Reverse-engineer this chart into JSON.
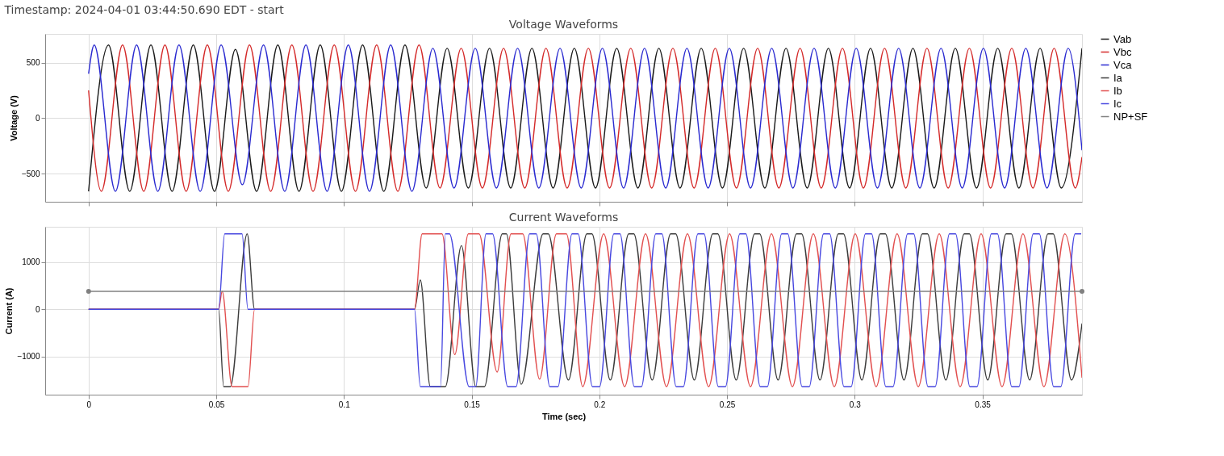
{
  "chart_data": [
    {
      "type": "line",
      "title": "Voltage Waveforms",
      "annotations": [
        "Timestamp: 2024-04-01 03:44:50.690 EDT - start"
      ],
      "ylabel": "Voltage (V)",
      "xlim": [
        -0.017,
        0.389
      ],
      "xticks": [
        0,
        0.05,
        0.1,
        0.15,
        0.2,
        0.25,
        0.3,
        0.35
      ],
      "ylim": [
        -754,
        760
      ],
      "yticks": [
        -500,
        0,
        500
      ],
      "grid": true,
      "legend": "right",
      "tick_labels": "y",
      "series": [
        {
          "name": "Vab",
          "color": "#1a1a1a",
          "x": [
            0,
            0.0078,
            0.0161,
            0.0244,
            0.0327,
            0.041,
            0.0493,
            0.0575,
            0.0658,
            0.0741,
            0.0824,
            0.0907,
            0.099,
            0.1073,
            0.1156,
            0.1239,
            0.1322,
            0.1404,
            0.1487,
            0.157,
            0.1653,
            0.1736,
            0.1819,
            0.1902,
            0.1985,
            0.2068,
            0.2151,
            0.2233,
            0.2316,
            0.2399,
            0.2482,
            0.2565,
            0.2648,
            0.2731,
            0.2814,
            0.2897,
            0.298,
            0.3062,
            0.3145,
            0.3228,
            0.3311,
            0.3394,
            0.3477,
            0.356,
            0.3643,
            0.3726,
            0.3809,
            0.389
          ],
          "values": [
            -660,
            660,
            -660,
            660,
            -660,
            660,
            -660,
            620,
            -660,
            660,
            -660,
            660,
            -660,
            660,
            -660,
            660,
            -630,
            630,
            -630,
            630,
            -630,
            630,
            -630,
            630,
            -630,
            630,
            -630,
            630,
            -630,
            630,
            -630,
            630,
            -630,
            630,
            -630,
            630,
            -630,
            630,
            -630,
            630,
            -630,
            630,
            -630,
            630,
            -630,
            630,
            -630,
            630
          ]
        },
        {
          "name": "Vbc",
          "color": "#d42a2a",
          "x": [
            0,
            0.005,
            0.0133,
            0.0216,
            0.0299,
            0.0382,
            0.0465,
            0.0547,
            0.063,
            0.0713,
            0.0796,
            0.0879,
            0.0962,
            0.1045,
            0.1128,
            0.1211,
            0.1294,
            0.1376,
            0.1459,
            0.1542,
            0.1625,
            0.1708,
            0.1791,
            0.1874,
            0.1957,
            0.204,
            0.2123,
            0.2205,
            0.2288,
            0.2371,
            0.2454,
            0.2537,
            0.262,
            0.2703,
            0.2786,
            0.2869,
            0.2952,
            0.3034,
            0.3117,
            0.32,
            0.3283,
            0.3366,
            0.3449,
            0.3532,
            0.3615,
            0.3698,
            0.3781,
            0.3864,
            0.389
          ],
          "values": [
            250,
            -660,
            660,
            -660,
            660,
            -660,
            660,
            -660,
            660,
            -660,
            660,
            -660,
            660,
            -660,
            660,
            -660,
            660,
            -630,
            630,
            -630,
            630,
            -630,
            630,
            -630,
            630,
            -630,
            630,
            -630,
            630,
            -630,
            630,
            -630,
            630,
            -630,
            630,
            -630,
            630,
            -630,
            630,
            -630,
            630,
            -630,
            630,
            -630,
            630,
            -630,
            630,
            -630,
            -350
          ]
        },
        {
          "name": "Vca",
          "color": "#2a2ad0",
          "x": [
            0,
            0.0022,
            0.0105,
            0.0188,
            0.0271,
            0.0354,
            0.0437,
            0.0519,
            0.0602,
            0.0685,
            0.0768,
            0.0851,
            0.0934,
            0.1017,
            0.11,
            0.1183,
            0.1266,
            0.1348,
            0.1431,
            0.1514,
            0.1597,
            0.168,
            0.1763,
            0.1846,
            0.1929,
            0.2012,
            0.2095,
            0.2177,
            0.226,
            0.2343,
            0.2426,
            0.2509,
            0.2592,
            0.2675,
            0.2758,
            0.2841,
            0.2924,
            0.3006,
            0.3089,
            0.3172,
            0.3255,
            0.3338,
            0.3421,
            0.3504,
            0.3587,
            0.367,
            0.3753,
            0.3836,
            0.389
          ],
          "values": [
            400,
            660,
            -660,
            660,
            -660,
            660,
            -660,
            660,
            -600,
            660,
            -660,
            660,
            -660,
            660,
            -660,
            660,
            -660,
            630,
            -630,
            630,
            -630,
            630,
            -630,
            630,
            -630,
            630,
            -630,
            630,
            -630,
            630,
            -630,
            630,
            -630,
            630,
            -630,
            630,
            -630,
            630,
            -630,
            630,
            -630,
            630,
            -630,
            630,
            -630,
            630,
            -630,
            630,
            -290
          ]
        }
      ]
    },
    {
      "type": "line",
      "title": "Current Waveforms",
      "xlabel": "Time (sec)",
      "ylabel": "Current (A)",
      "xlim": [
        -0.017,
        0.389
      ],
      "xticks": [
        0,
        0.05,
        0.1,
        0.15,
        0.2,
        0.25,
        0.3,
        0.35
      ],
      "ylim": [
        -1810,
        1750
      ],
      "yticks": [
        -1000,
        0,
        1000
      ],
      "grid": true,
      "legend": "right",
      "series": [
        {
          "name": "Ia",
          "color": "#3c3c3c",
          "x": [
            0,
            0.0509,
            0.0529,
            0.0555,
            0.0621,
            0.065,
            0.1276,
            0.1299,
            0.1338,
            0.1397,
            0.146,
            0.1516,
            0.155,
            0.162,
            0.1636,
            0.1694,
            0.178,
            0.18,
            0.1879,
            0.1951,
            0.1971,
            0.2043,
            0.2115,
            0.2135,
            0.2207,
            0.2279,
            0.2299,
            0.2372,
            0.2444,
            0.2464,
            0.2536,
            0.2608,
            0.2628,
            0.27,
            0.2772,
            0.2792,
            0.2864,
            0.2936,
            0.2956,
            0.3028,
            0.31,
            0.312,
            0.3193,
            0.3265,
            0.3285,
            0.3357,
            0.3429,
            0.3449,
            0.3521,
            0.3593,
            0.3613,
            0.3685,
            0.3757,
            0.3777,
            0.3849,
            0.389
          ],
          "values": [
            0,
            0,
            -1640,
            -1640,
            1600,
            0,
            0,
            620,
            -1640,
            -1640,
            1350,
            -1640,
            -1640,
            1600,
            1600,
            -1590,
            1600,
            1600,
            -1500,
            1600,
            1600,
            -1500,
            1600,
            1600,
            -1500,
            1600,
            1600,
            -1500,
            1600,
            1600,
            -1500,
            1600,
            1600,
            -1500,
            1600,
            1600,
            -1500,
            1600,
            1600,
            -1500,
            1600,
            1600,
            -1500,
            1600,
            1600,
            -1500,
            1600,
            1600,
            -1500,
            1600,
            1600,
            -1500,
            1600,
            1600,
            -1500,
            -300
          ]
        },
        {
          "name": "Ib",
          "color": "#e25050",
          "x": [
            0,
            0.0509,
            0.0523,
            0.0562,
            0.0624,
            0.065,
            0.1276,
            0.1306,
            0.1384,
            0.1434,
            0.1487,
            0.1529,
            0.16,
            0.1654,
            0.17,
            0.1766,
            0.1832,
            0.1871,
            0.1935,
            0.2017,
            0.2099,
            0.2181,
            0.2263,
            0.2345,
            0.2428,
            0.251,
            0.2592,
            0.2674,
            0.2756,
            0.2838,
            0.292,
            0.3002,
            0.3084,
            0.3166,
            0.3249,
            0.3331,
            0.3413,
            0.3495,
            0.3577,
            0.3659,
            0.3741,
            0.3823,
            0.389
          ],
          "values": [
            0,
            0,
            380,
            -1640,
            -1640,
            0,
            0,
            1600,
            1600,
            -960,
            1600,
            1600,
            -1330,
            1600,
            1600,
            -1480,
            1600,
            1600,
            -1640,
            1600,
            -1640,
            1600,
            -1640,
            1600,
            -1640,
            1600,
            -1640,
            1600,
            -1640,
            1600,
            -1640,
            1600,
            -1640,
            1600,
            -1640,
            1600,
            -1640,
            1600,
            -1640,
            1600,
            -1640,
            1600,
            -1450
          ]
        },
        {
          "name": "Ic",
          "color": "#4848e0",
          "x": [
            0,
            0.0509,
            0.0533,
            0.0601,
            0.0624,
            0.1276,
            0.1299,
            0.1378,
            0.1397,
            0.1413,
            0.149,
            0.1516,
            0.1556,
            0.1582,
            0.1641,
            0.1674,
            0.1727,
            0.1753,
            0.1806,
            0.1838,
            0.1893,
            0.1917,
            0.1973,
            0.2001,
            0.2057,
            0.2081,
            0.2137,
            0.2165,
            0.2221,
            0.2245,
            0.2301,
            0.2329,
            0.2386,
            0.241,
            0.2466,
            0.2494,
            0.255,
            0.2574,
            0.263,
            0.2658,
            0.2714,
            0.2738,
            0.2794,
            0.2822,
            0.2878,
            0.2902,
            0.2958,
            0.2986,
            0.3042,
            0.3066,
            0.3122,
            0.315,
            0.3207,
            0.3231,
            0.3287,
            0.3315,
            0.3371,
            0.3395,
            0.3451,
            0.3479,
            0.3535,
            0.3559,
            0.3615,
            0.3643,
            0.3699,
            0.3723,
            0.3779,
            0.3807,
            0.3863,
            0.3887
          ],
          "values": [
            0,
            0,
            1600,
            1600,
            0,
            0,
            -1640,
            -1640,
            1600,
            1600,
            -1640,
            -1640,
            1600,
            1600,
            -1640,
            -1640,
            1600,
            1600,
            -1640,
            -1640,
            1600,
            1600,
            -1640,
            -1640,
            1600,
            1600,
            -1640,
            -1640,
            1600,
            1600,
            -1640,
            -1640,
            1600,
            1600,
            -1640,
            -1640,
            1600,
            1600,
            -1640,
            -1640,
            1600,
            1600,
            -1640,
            -1640,
            1600,
            1600,
            -1640,
            -1640,
            1600,
            1600,
            -1640,
            -1640,
            1600,
            1600,
            -1640,
            -1640,
            1600,
            1600,
            -1640,
            -1640,
            1600,
            1600,
            -1640,
            -1640,
            1600,
            1600,
            -1640,
            -1640,
            1600,
            1600
          ]
        },
        {
          "name": "NP+SF",
          "color": "#808080",
          "marker": "circle",
          "x": [
            0,
            0.389
          ],
          "values": [
            380,
            380
          ]
        }
      ]
    }
  ]
}
